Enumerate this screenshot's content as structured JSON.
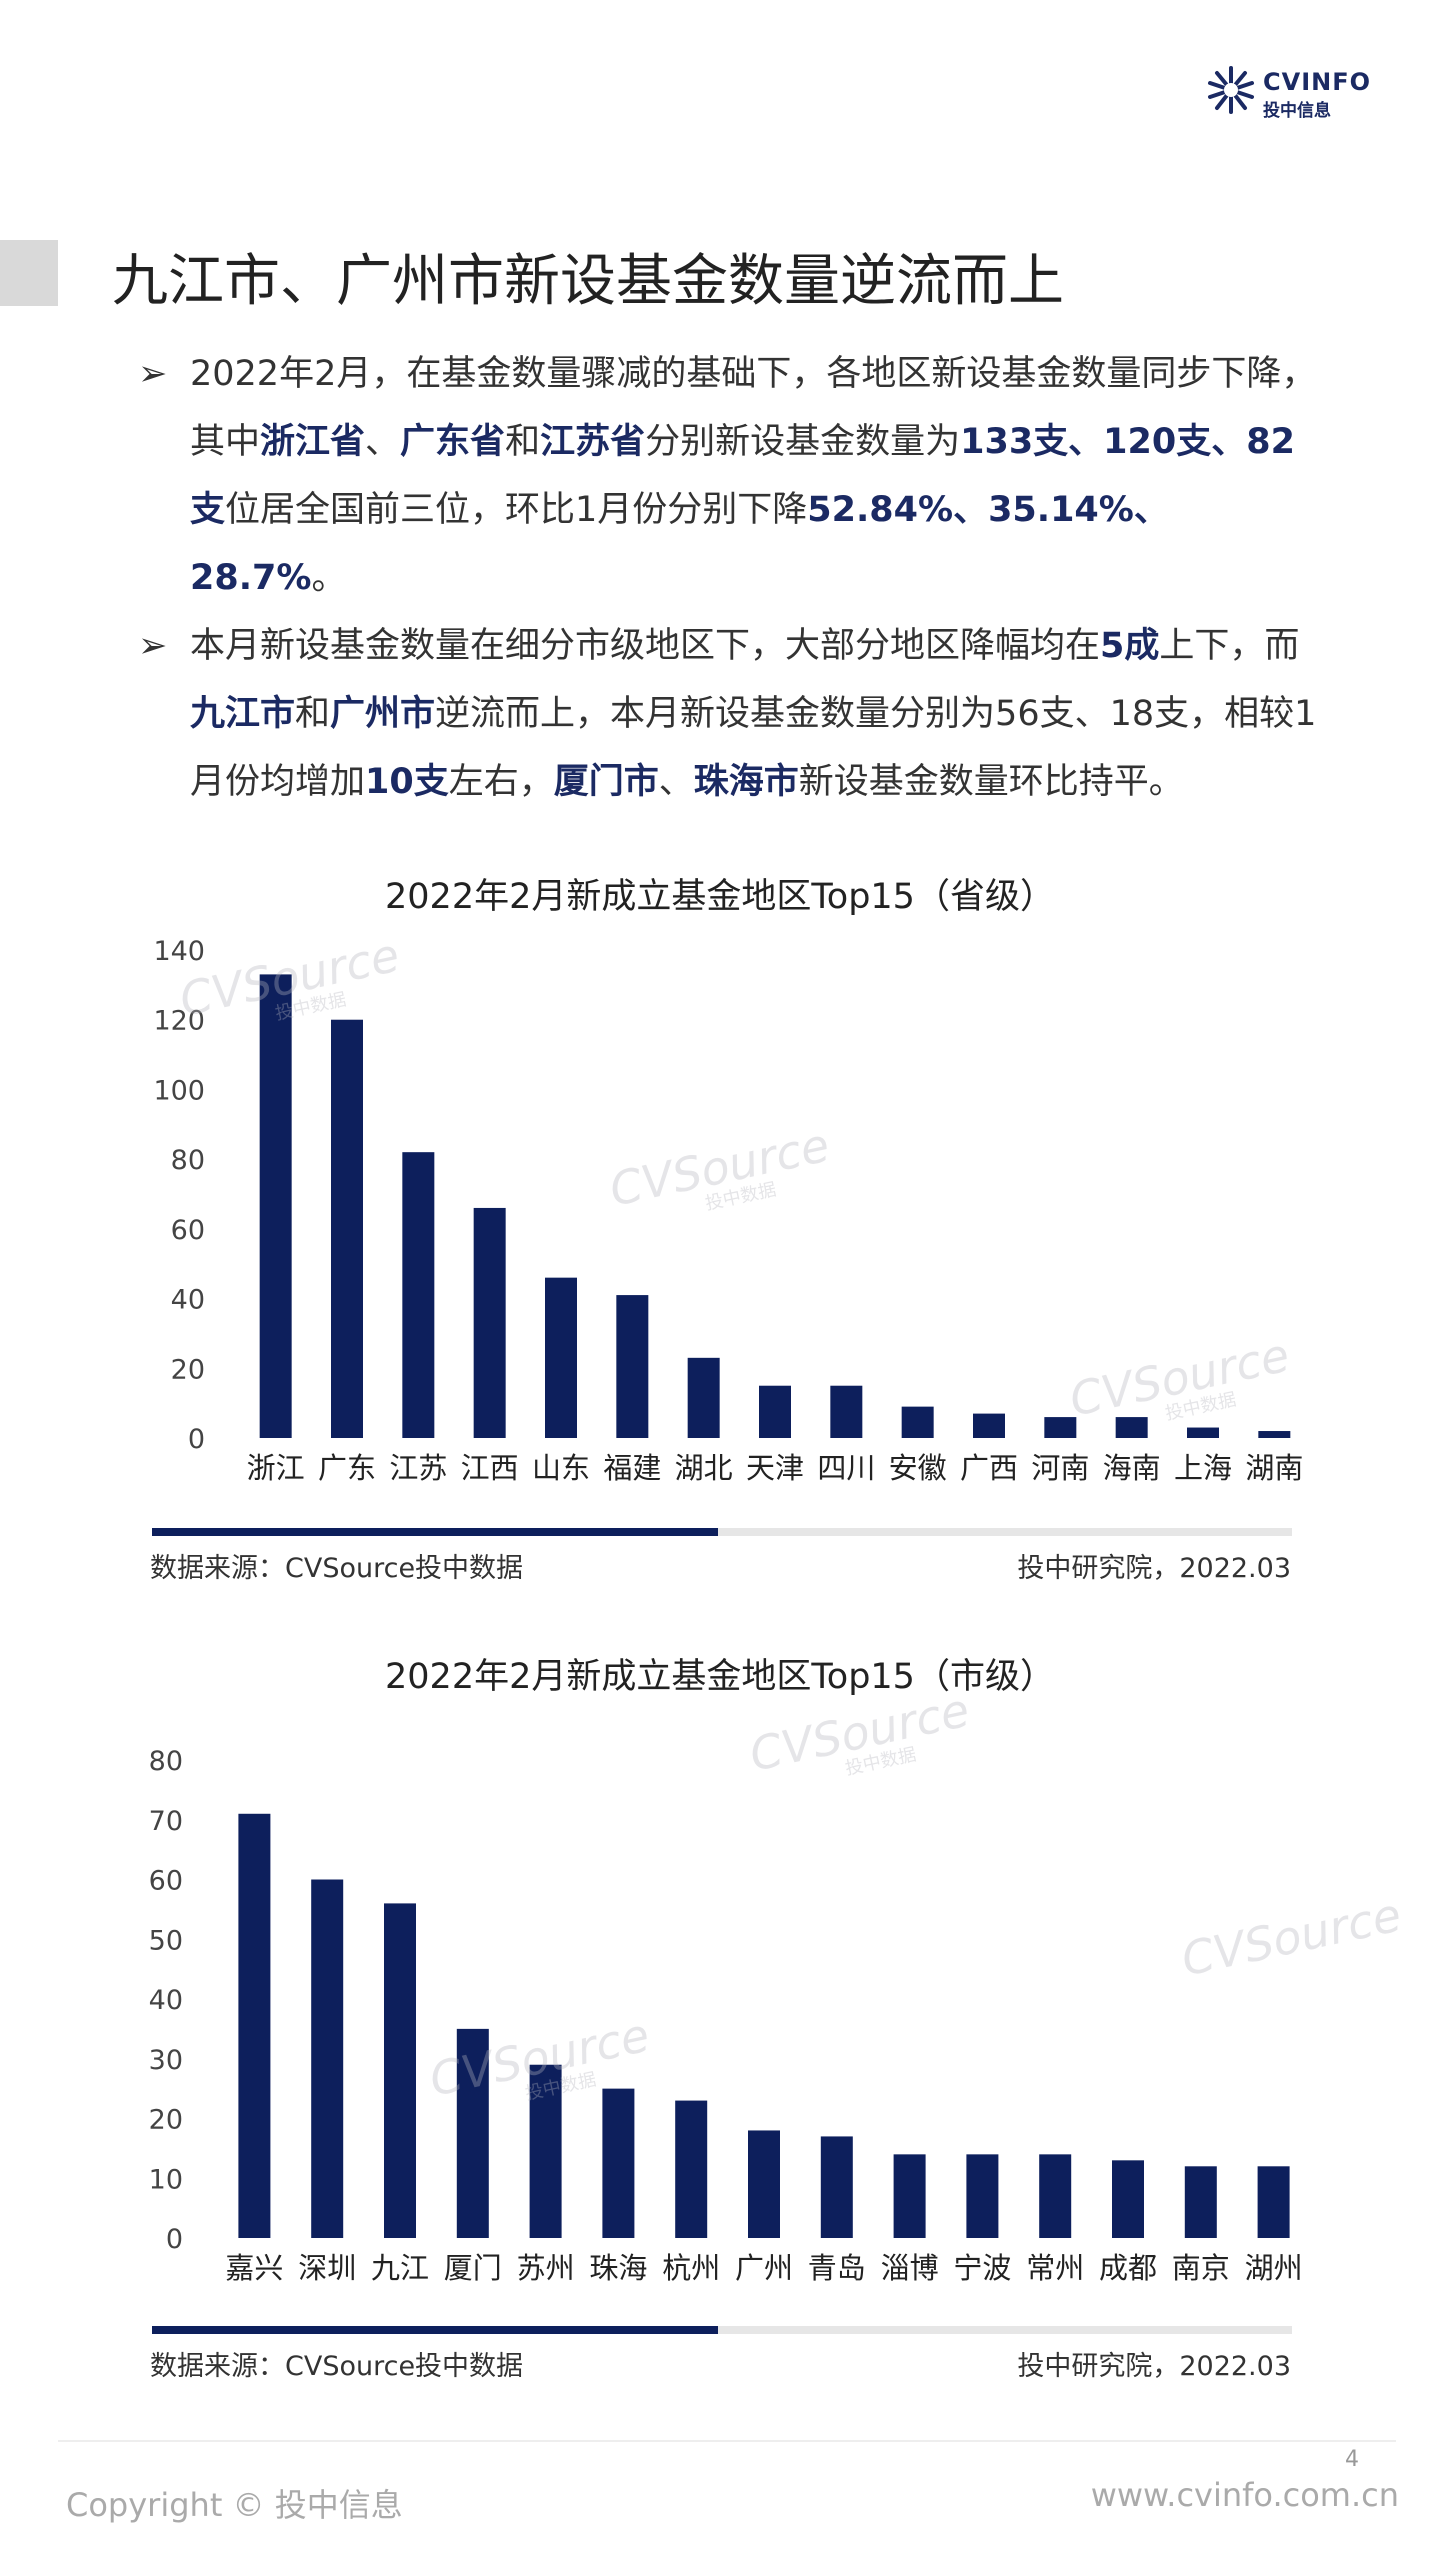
{
  "header": {
    "logo_text": "CVINFO",
    "logo_subtext": "投中信息",
    "logo_icon": "sunburst-logo-icon",
    "page_title": "九江市、广州市新设基金数量逆流而上"
  },
  "bullets": [
    [
      {
        "t": "2022年2月，在基金数量骤减的基础下，各地区新设基金数量同步下降，其中"
      },
      {
        "t": "浙江省",
        "h": true
      },
      {
        "t": "、"
      },
      {
        "t": "广东省",
        "h": true
      },
      {
        "t": "和"
      },
      {
        "t": "江苏省",
        "h": true
      },
      {
        "t": "分别新设基金数量为"
      },
      {
        "t": "133支、120支、82支",
        "h": true
      },
      {
        "t": "位居全国前三位，环比1月份分别下降"
      },
      {
        "t": "52.84%、35.14%、28.7%",
        "h": true
      },
      {
        "t": "。"
      }
    ],
    [
      {
        "t": "本月新设基金数量在细分市级地区下，大部分地区降幅均在"
      },
      {
        "t": "5成",
        "h": true
      },
      {
        "t": "上下，而"
      },
      {
        "t": "九江市",
        "h": true
      },
      {
        "t": "和"
      },
      {
        "t": "广州市",
        "h": true
      },
      {
        "t": "逆流而上，本月新设基金数量分别为56支、18支，相较1月份均增加"
      },
      {
        "t": "10支",
        "h": true
      },
      {
        "t": "左右，"
      },
      {
        "t": "厦门市",
        "h": true
      },
      {
        "t": "、"
      },
      {
        "t": "珠海市",
        "h": true
      },
      {
        "t": "新设基金数量环比持平。"
      }
    ]
  ],
  "bullet_marker": "➢",
  "chart_data": [
    {
      "type": "bar",
      "title": "2022年2月新成立基金地区Top15（省级）",
      "categories": [
        "浙江",
        "广东",
        "江苏",
        "江西",
        "山东",
        "福建",
        "湖北",
        "天津",
        "四川",
        "安徽",
        "广西",
        "河南",
        "海南",
        "上海",
        "湖南"
      ],
      "values": [
        133,
        120,
        82,
        66,
        46,
        41,
        23,
        15,
        15,
        9,
        7,
        6,
        6,
        3,
        2
      ],
      "ylim": [
        0,
        140
      ],
      "yticks": [
        0,
        20,
        40,
        60,
        80,
        100,
        120,
        140
      ],
      "bar_color": "#0d1f5c",
      "grid": false,
      "legend": "none"
    },
    {
      "type": "bar",
      "title": "2022年2月新成立基金地区Top15（市级）",
      "categories": [
        "嘉兴",
        "深圳",
        "九江",
        "厦门",
        "苏州",
        "珠海",
        "杭州",
        "广州",
        "青岛",
        "淄博",
        "宁波",
        "常州",
        "成都",
        "南京",
        "湖州"
      ],
      "values": [
        71,
        60,
        56,
        35,
        29,
        25,
        23,
        18,
        17,
        14,
        14,
        14,
        13,
        12,
        12
      ],
      "ylim": [
        0,
        80
      ],
      "yticks": [
        0,
        10,
        20,
        30,
        40,
        50,
        60,
        70,
        80
      ],
      "bar_color": "#0d1f5c",
      "grid": false,
      "legend": "none"
    }
  ],
  "sources": {
    "left": "数据来源：CVSource投中数据",
    "right": "投中研究院，2022.03"
  },
  "watermark": {
    "main": "CVSource",
    "sub": "投中数据"
  },
  "footer": {
    "page_number": "4",
    "copyright": "Copyright © 投中信息",
    "website": "www.cvinfo.com.cn"
  },
  "colors": {
    "accent": "#1b2a63",
    "bar": "#0d1f5c",
    "divider_dark": "#0d1f5c",
    "divider_light": "#e6e6e6"
  }
}
